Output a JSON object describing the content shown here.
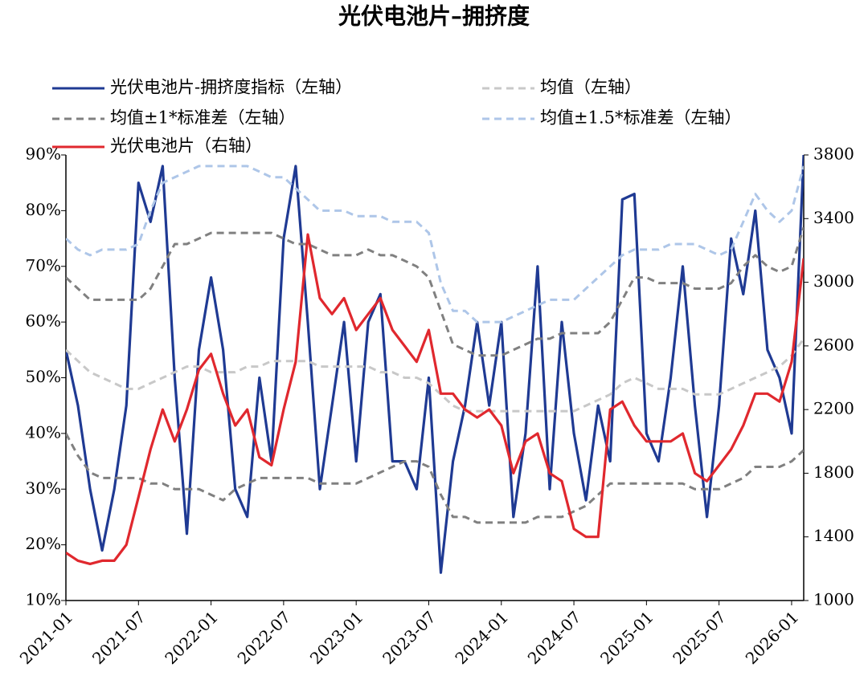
{
  "chart_data": {
    "type": "line",
    "title": "光伏电池片–拥挤度",
    "categories": [
      "2021-01",
      "2021-02",
      "2021-03",
      "2021-04",
      "2021-05",
      "2021-06",
      "2021-07",
      "2021-08",
      "2021-09",
      "2021-10",
      "2021-11",
      "2021-12",
      "2022-01",
      "2022-02",
      "2022-03",
      "2022-04",
      "2022-05",
      "2022-06",
      "2022-07",
      "2022-08",
      "2022-09",
      "2022-10",
      "2022-11",
      "2022-12",
      "2023-01",
      "2023-02",
      "2023-03",
      "2023-04",
      "2023-05",
      "2023-06",
      "2023-07",
      "2023-08",
      "2023-09",
      "2023-10",
      "2023-11",
      "2023-12",
      "2024-01",
      "2024-02",
      "2024-03",
      "2024-04",
      "2024-05",
      "2024-06",
      "2024-07",
      "2024-08",
      "2024-09",
      "2024-10",
      "2024-11",
      "2024-12",
      "2025-01",
      "2025-02",
      "2025-03",
      "2025-04",
      "2025-05",
      "2025-06",
      "2025-07",
      "2025-08",
      "2025-09",
      "2025-10",
      "2025-11",
      "2025-12",
      "2026-01",
      "2026-02"
    ],
    "xticks": [
      "2021-01",
      "2021-07",
      "2022-01",
      "2022-07",
      "2023-01",
      "2023-07",
      "2024-01",
      "2024-07",
      "2025-01",
      "2025-07",
      "2026-01"
    ],
    "ylim": [
      10,
      90
    ],
    "yticks": [
      {
        "value": 10,
        "label": "10%"
      },
      {
        "value": 20,
        "label": "20%"
      },
      {
        "value": 30,
        "label": "30%"
      },
      {
        "value": 40,
        "label": "40%"
      },
      {
        "value": 50,
        "label": "50%"
      },
      {
        "value": 60,
        "label": "60%"
      },
      {
        "value": 70,
        "label": "70%"
      },
      {
        "value": 80,
        "label": "80%"
      },
      {
        "value": 90,
        "label": "90%"
      }
    ],
    "y2lim": [
      1000,
      3800
    ],
    "y2ticks": [
      1000,
      1400,
      1800,
      2200,
      2600,
      3000,
      3400,
      3800
    ],
    "series": [
      {
        "name": "光伏电池片-拥挤度指标（左轴）",
        "color": "#1f3a93",
        "dash": false,
        "values": [
          55,
          45,
          30,
          19,
          30,
          45,
          85,
          78,
          88,
          50,
          22,
          55,
          68,
          55,
          30,
          25,
          50,
          35,
          75,
          88,
          60,
          30,
          45,
          60,
          35,
          60,
          65,
          35,
          35,
          30,
          50,
          15,
          35,
          45,
          60,
          45,
          60,
          25,
          40,
          70,
          30,
          60,
          40,
          28,
          45,
          35,
          82,
          83,
          40,
          35,
          50,
          70,
          45,
          25,
          45,
          75,
          65,
          80,
          55,
          50,
          40,
          90
        ]
      },
      {
        "name": "均值（左轴）",
        "color": "#c8c8c8",
        "dash": true,
        "values": [
          55,
          53,
          51,
          50,
          49,
          48,
          48,
          49,
          50,
          51,
          52,
          52,
          51,
          51,
          51,
          52,
          52,
          53,
          53,
          53,
          53,
          52,
          52,
          52,
          52,
          52,
          51,
          51,
          50,
          50,
          49,
          47,
          45,
          44,
          44,
          44,
          44,
          44,
          44,
          44,
          44,
          44,
          44,
          45,
          46,
          47,
          49,
          50,
          49,
          48,
          48,
          48,
          47,
          47,
          47,
          48,
          49,
          50,
          51,
          52,
          54,
          57
        ]
      },
      {
        "name": "均值±1*标准差（左轴）",
        "color": "#808080",
        "dash": true,
        "upper": [
          68,
          66,
          64,
          64,
          64,
          64,
          64,
          66,
          70,
          74,
          74,
          75,
          76,
          76,
          76,
          76,
          76,
          76,
          75,
          74,
          74,
          73,
          72,
          72,
          72,
          73,
          72,
          72,
          71,
          70,
          68,
          62,
          56,
          55,
          54,
          54,
          54,
          55,
          56,
          57,
          57,
          58,
          58,
          58,
          58,
          60,
          64,
          68,
          68,
          67,
          67,
          67,
          66,
          66,
          66,
          67,
          70,
          72,
          70,
          69,
          70,
          77
        ],
        "lower": [
          40,
          36,
          33,
          32,
          32,
          32,
          32,
          31,
          31,
          30,
          30,
          30,
          29,
          28,
          30,
          31,
          32,
          32,
          32,
          32,
          32,
          31,
          31,
          31,
          31,
          32,
          33,
          34,
          35,
          35,
          34,
          29,
          25,
          25,
          24,
          24,
          24,
          24,
          24,
          25,
          25,
          25,
          26,
          27,
          29,
          31,
          31,
          31,
          31,
          31,
          31,
          31,
          30,
          30,
          30,
          31,
          32,
          34,
          34,
          34,
          35,
          37
        ]
      },
      {
        "name": "均值±1.5*标准差（左轴）",
        "color": "#aec6e8",
        "dash": true,
        "upper": [
          75,
          73,
          72,
          73,
          73,
          73,
          74,
          80,
          85,
          86,
          87,
          88,
          88,
          88,
          88,
          88,
          87,
          86,
          86,
          84,
          82,
          80,
          80,
          80,
          79,
          79,
          79,
          78,
          78,
          78,
          76,
          67,
          62,
          62,
          60,
          60,
          60,
          61,
          62,
          63,
          64,
          64,
          64,
          66,
          68,
          70,
          72,
          73,
          73,
          73,
          74,
          74,
          74,
          73,
          72,
          73,
          78,
          83,
          80,
          78,
          80,
          88
        ]
      },
      {
        "name": "光伏电池片（右轴）",
        "color": "#e0282e",
        "dash": false,
        "axis": "y2",
        "values": [
          1300,
          1250,
          1230,
          1250,
          1250,
          1350,
          1650,
          1950,
          2200,
          2000,
          2200,
          2450,
          2550,
          2300,
          2100,
          2200,
          1900,
          1850,
          2200,
          2500,
          3300,
          2900,
          2800,
          2900,
          2700,
          2800,
          2900,
          2700,
          2600,
          2500,
          2700,
          2300,
          2300,
          2200,
          2150,
          2200,
          2100,
          1800,
          2000,
          2050,
          1800,
          1750,
          1450,
          1400,
          1400,
          2200,
          2250,
          2100,
          2000,
          2000,
          2000,
          2050,
          1800,
          1750,
          1850,
          1950,
          2100,
          2300,
          2300,
          2250,
          2500,
          3150
        ]
      }
    ]
  }
}
